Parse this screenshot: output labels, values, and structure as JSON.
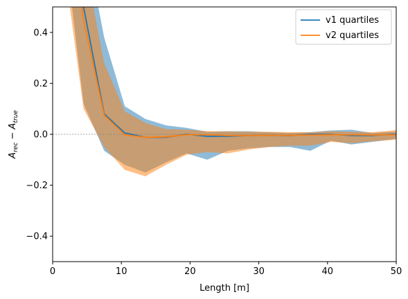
{
  "chart_data": {
    "type": "area",
    "xlabel": "Length [m]",
    "ylabel": "A_rec - A_true",
    "ylabel_parts": {
      "base1": "A",
      "sub1": "rec",
      "minus": " − ",
      "base2": "A",
      "sub2": "true"
    },
    "xlim": [
      0,
      50
    ],
    "ylim": [
      -0.5,
      0.5
    ],
    "xticks": [
      0,
      10,
      20,
      30,
      40,
      50
    ],
    "yticks": [
      -0.4,
      -0.2,
      0.0,
      0.2,
      0.4
    ],
    "xtick_labels": [
      "0",
      "10",
      "20",
      "30",
      "40",
      "50"
    ],
    "ytick_labels": [
      "−0.4",
      "−0.2",
      "0.0",
      "0.2",
      "0.4"
    ],
    "reference_line_y": 0,
    "legend_position": "upper-right",
    "x": [
      1.5,
      4.5,
      7.5,
      10.5,
      13.5,
      16.5,
      19.5,
      22.5,
      25.5,
      28.5,
      31.5,
      34.5,
      37.5,
      40.5,
      43.5,
      46.5,
      49.5,
      50
    ],
    "series": [
      {
        "name": "v1 quartiles",
        "color": "#1f77b4",
        "band_color": "#1f77b4",
        "median": [
          1.2,
          0.5,
          0.08,
          0.005,
          -0.012,
          -0.012,
          0.0,
          -0.008,
          -0.008,
          -0.005,
          -0.004,
          -0.005,
          0.0,
          0.0,
          -0.005,
          -0.005,
          0.0,
          0.0
        ],
        "upper": [
          1.6,
          0.8,
          0.38,
          0.11,
          0.06,
          0.035,
          0.025,
          0.01,
          0.012,
          0.012,
          0.008,
          0.005,
          0.008,
          0.015,
          0.018,
          0.005,
          0.01,
          0.01
        ],
        "lower": [
          0.8,
          0.12,
          -0.065,
          -0.12,
          -0.15,
          -0.11,
          -0.075,
          -0.1,
          -0.065,
          -0.055,
          -0.05,
          -0.05,
          -0.065,
          -0.025,
          -0.04,
          -0.03,
          -0.02,
          -0.018
        ]
      },
      {
        "name": "v2 quartiles",
        "color": "#ff7f0e",
        "band_color": "#ff7f0e",
        "median": [
          1.0,
          0.45,
          0.075,
          -0.002,
          -0.012,
          -0.01,
          -0.002,
          -0.002,
          -0.005,
          -0.005,
          -0.004,
          -0.004,
          -0.003,
          -0.002,
          -0.002,
          -0.003,
          -0.002,
          -0.002
        ],
        "upper": [
          1.3,
          0.7,
          0.28,
          0.09,
          0.045,
          0.02,
          0.018,
          0.012,
          0.012,
          0.01,
          0.01,
          0.008,
          0.008,
          0.012,
          0.01,
          0.008,
          0.015,
          0.018
        ],
        "lower": [
          0.7,
          0.1,
          -0.05,
          -0.14,
          -0.165,
          -0.12,
          -0.08,
          -0.07,
          -0.075,
          -0.06,
          -0.05,
          -0.045,
          -0.045,
          -0.03,
          -0.035,
          -0.028,
          -0.022,
          -0.02
        ]
      }
    ]
  }
}
